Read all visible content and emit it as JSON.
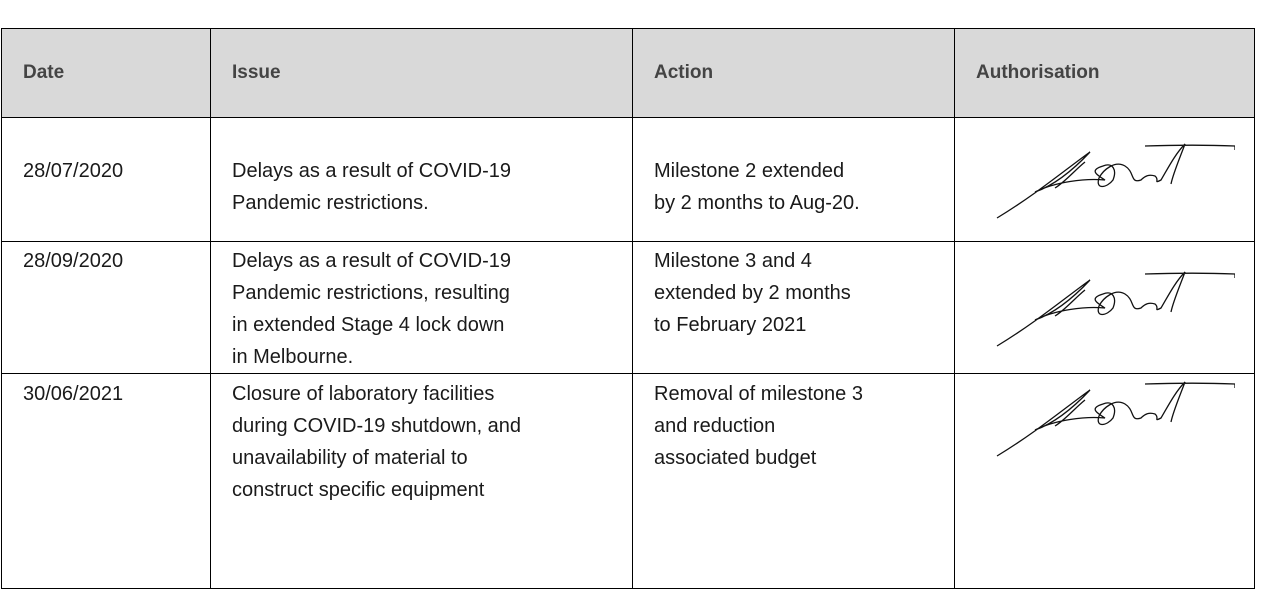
{
  "table": {
    "header": [
      "Date",
      "Issue",
      "Action",
      "Authorisation"
    ],
    "rows": [
      {
        "date": "28/07/2020",
        "issue": [
          "Delays as a result of COVID-19",
          "Pandemic restrictions."
        ],
        "action": [
          "Milestone 2 extended",
          "by 2 months to Aug-20."
        ]
      },
      {
        "date": "28/09/2020",
        "issue": [
          "Delays as a result of COVID-19",
          "Pandemic restrictions, resulting",
          "in extended Stage 4 lock down",
          "in Melbourne."
        ],
        "action": [
          "Milestone 3 and 4",
          "extended by 2 months",
          "to February 2021"
        ]
      },
      {
        "date": "30/06/2021",
        "issue": [
          "Closure of laboratory facilities",
          "during COVID-19 shutdown, and",
          "unavailability of material to",
          "construct specific equipment"
        ],
        "action": [
          "Removal of milestone 3",
          "and reduction",
          "associated budget"
        ]
      }
    ]
  }
}
